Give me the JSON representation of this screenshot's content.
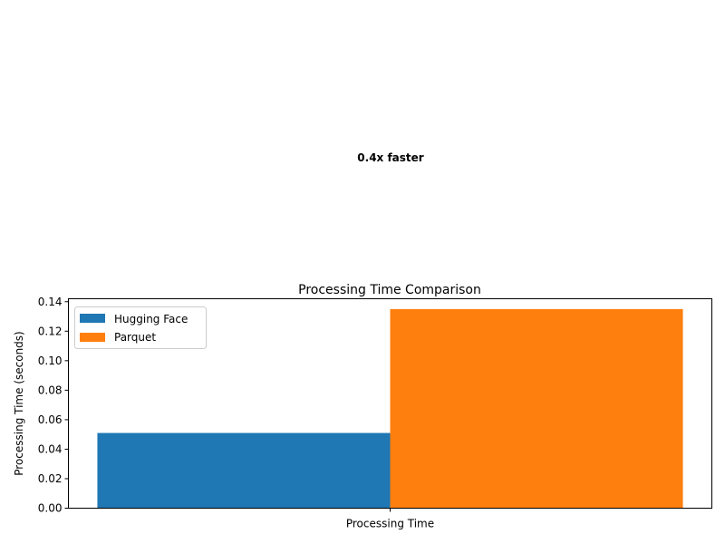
{
  "chart_data": {
    "type": "bar",
    "title": "Processing Time Comparison",
    "xlabel": "",
    "ylabel": "Processing Time (seconds)",
    "categories": [
      "Processing Time"
    ],
    "series": [
      {
        "name": "Hugging Face",
        "values": [
          0.051
        ],
        "color": "#1f77b4"
      },
      {
        "name": "Parquet",
        "values": [
          0.135
        ],
        "color": "#ff7f0e"
      }
    ],
    "ylim": [
      0,
      0.142
    ],
    "yticks": [
      "0.00",
      "0.02",
      "0.04",
      "0.06",
      "0.08",
      "0.10",
      "0.12",
      "0.14"
    ],
    "legend": "top-left",
    "grid": false,
    "annotation": "0.4x faster"
  }
}
